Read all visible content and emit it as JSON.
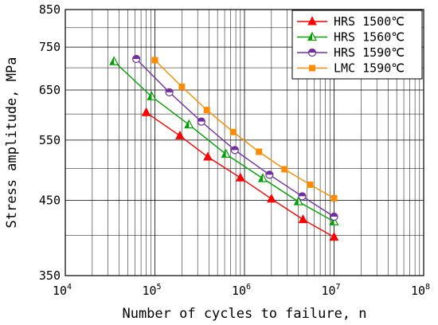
{
  "chart_data": {
    "type": "line",
    "title": "",
    "xlabel": "Number of cycles to failure, n",
    "ylabel": "Stress amplitude, MPa",
    "xscale": "log",
    "yscale": "log",
    "xlim": [
      10000,
      100000000
    ],
    "ylim": [
      350,
      850
    ],
    "x_ticks": [
      {
        "value": 10000,
        "base": "10",
        "exp": "4"
      },
      {
        "value": 100000,
        "base": "10",
        "exp": "5"
      },
      {
        "value": 1000000,
        "base": "10",
        "exp": "6"
      },
      {
        "value": 10000000,
        "base": "10",
        "exp": "7"
      },
      {
        "value": 100000000,
        "base": "10",
        "exp": "8"
      }
    ],
    "y_ticks": [
      {
        "value": 350,
        "label": "350"
      },
      {
        "value": 450,
        "label": "450"
      },
      {
        "value": 550,
        "label": "550"
      },
      {
        "value": 650,
        "label": "650"
      },
      {
        "value": 750,
        "label": "750"
      },
      {
        "value": 850,
        "label": "850"
      }
    ],
    "grid": true,
    "legend_position": "top-right",
    "series": [
      {
        "name": "HRS 1500℃",
        "color": "#ff0000",
        "marker": "triangle-filled",
        "points": [
          [
            80000,
            603
          ],
          [
            190000,
            558
          ],
          [
            390000,
            520
          ],
          [
            900000,
            485
          ],
          [
            2000000,
            452
          ],
          [
            4500000,
            422
          ],
          [
            10000000,
            398
          ]
        ]
      },
      {
        "name": "HRS 1560℃",
        "color": "#00a000",
        "marker": "triangle-half",
        "points": [
          [
            35000,
            715
          ],
          [
            92000,
            636
          ],
          [
            240000,
            579
          ],
          [
            620000,
            525
          ],
          [
            1600000,
            484
          ],
          [
            4000000,
            448
          ],
          [
            10000000,
            419
          ]
        ]
      },
      {
        "name": "HRS 1590℃",
        "color": "#7030a0",
        "marker": "circle-half",
        "points": [
          [
            62000,
            721
          ],
          [
            145000,
            645
          ],
          [
            330000,
            585
          ],
          [
            780000,
            532
          ],
          [
            1900000,
            490
          ],
          [
            4400000,
            456
          ],
          [
            10000000,
            426
          ]
        ]
      },
      {
        "name": "LMC 1590℃",
        "color": "#ff8c00",
        "marker": "square-filled",
        "points": [
          [
            100000,
            718
          ],
          [
            200000,
            657
          ],
          [
            380000,
            608
          ],
          [
            750000,
            565
          ],
          [
            1450000,
            529
          ],
          [
            2800000,
            499
          ],
          [
            5400000,
            474
          ],
          [
            10000000,
            453
          ]
        ]
      }
    ]
  }
}
